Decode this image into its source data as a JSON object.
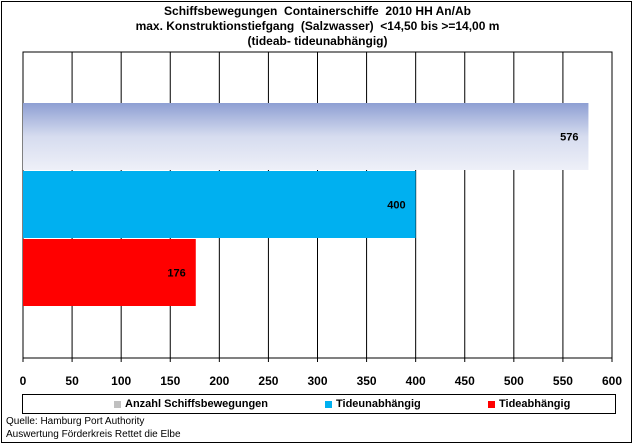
{
  "chart_data": {
    "type": "bar",
    "orientation": "horizontal",
    "title_lines": [
      "Schiffsbewegungen  Containerschiffe  2010 HH An/Ab",
      "max. Konstruktionstiefgang  (Salzwasser)  <14,50 bis >=14,00 m",
      "(tideab- tideunabhängig)"
    ],
    "xlim": [
      0,
      600
    ],
    "xticks": [
      "0",
      "50",
      "100",
      "150",
      "200",
      "250",
      "300",
      "350",
      "400",
      "450",
      "500",
      "550",
      "600"
    ],
    "grid": true,
    "legend_position": "bottom",
    "series": [
      {
        "name": "Anzahl Schiffsbewegungen",
        "value": 576,
        "color": "#b3bfe2"
      },
      {
        "name": "Tideunabhängig",
        "value": 400,
        "color": "#00b0f0"
      },
      {
        "name": "Tideabhängig",
        "value": 176,
        "color": "#ff0000"
      }
    ]
  },
  "footer": {
    "source_line": "Quelle: Hamburg Port Authority",
    "credit_line": "Auswertung Förderkreis Rettet die Elbe"
  }
}
